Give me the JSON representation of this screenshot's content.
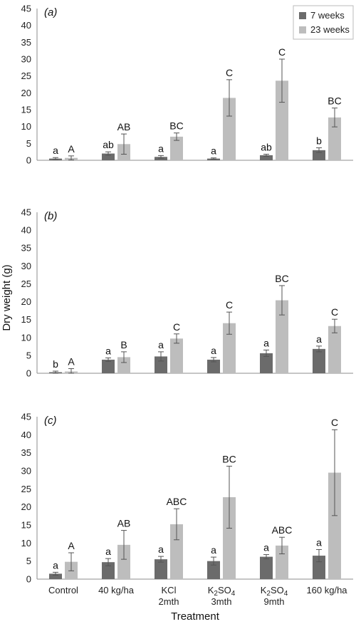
{
  "chart_data": [
    {
      "type": "bar",
      "panel_label": "(a)",
      "categories": [
        "Control",
        "40 kg/ha",
        "KCl 2mth",
        "K2SO4 3mth",
        "K2SO4 9mth",
        "160 kg/ha"
      ],
      "ylim": [
        0,
        45
      ],
      "yticks": [
        0,
        5,
        10,
        15,
        20,
        25,
        30,
        35,
        40,
        45
      ],
      "series": [
        {
          "name": "7 weeks",
          "values": [
            0.5,
            2.0,
            1.0,
            0.5,
            1.5,
            3.0
          ],
          "errors": [
            0.3,
            0.5,
            0.4,
            0.2,
            0.3,
            0.7
          ],
          "letters": [
            "a",
            "ab",
            "a",
            "a",
            "ab",
            "b"
          ]
        },
        {
          "name": "23 weeks",
          "values": [
            0.7,
            4.8,
            7.0,
            18.5,
            23.6,
            12.7
          ],
          "errors": [
            0.6,
            3.0,
            1.1,
            5.4,
            6.4,
            2.8
          ],
          "letters": [
            "A",
            "AB",
            "BC",
            "C",
            "C",
            "BC"
          ]
        }
      ],
      "legend": {
        "position": "top-right",
        "entries": [
          "7 weeks",
          "23 weeks"
        ]
      }
    },
    {
      "type": "bar",
      "panel_label": "(b)",
      "categories": [
        "Control",
        "40 kg/ha",
        "KCl 2mth",
        "K2SO4 3mth",
        "K2SO4 9mth",
        "160 kg/ha"
      ],
      "ylim": [
        0,
        45
      ],
      "yticks": [
        0,
        5,
        10,
        15,
        20,
        25,
        30,
        35,
        40,
        45
      ],
      "series": [
        {
          "name": "7 weeks",
          "values": [
            0.3,
            3.8,
            4.7,
            3.8,
            5.6,
            6.8
          ],
          "errors": [
            0.3,
            0.5,
            1.3,
            0.6,
            0.9,
            0.8
          ],
          "letters": [
            "b",
            "a",
            "a",
            "a",
            "a",
            "a"
          ]
        },
        {
          "name": "23 weeks",
          "values": [
            0.5,
            4.5,
            9.7,
            14.0,
            20.4,
            13.2
          ],
          "errors": [
            0.8,
            1.5,
            1.3,
            3.1,
            4.1,
            1.9
          ],
          "letters": [
            "A",
            "B",
            "C",
            "C",
            "BC",
            "C"
          ]
        }
      ],
      "ylabel": "Dry weight (g)"
    },
    {
      "type": "bar",
      "panel_label": "(c)",
      "categories": [
        "Control",
        "40 kg/ha",
        "KCl 2mth",
        "K2SO4 3mth",
        "K2SO4 9mth",
        "160 kg/ha"
      ],
      "ylim": [
        0,
        45
      ],
      "yticks": [
        0,
        5,
        10,
        15,
        20,
        25,
        30,
        35,
        40,
        45
      ],
      "series": [
        {
          "name": "7 weeks",
          "values": [
            1.5,
            4.7,
            5.5,
            5.0,
            6.2,
            6.5
          ],
          "errors": [
            0.4,
            1.0,
            0.8,
            1.1,
            0.6,
            1.7
          ],
          "letters": [
            "a",
            "a",
            "a",
            "a",
            "a",
            "a"
          ]
        },
        {
          "name": "23 weeks",
          "values": [
            4.8,
            9.5,
            15.2,
            22.7,
            9.3,
            29.5
          ],
          "errors": [
            2.5,
            4.0,
            4.3,
            8.6,
            2.3,
            11.9
          ],
          "letters": [
            "A",
            "AB",
            "ABC",
            "BC",
            "ABC",
            "C"
          ]
        }
      ],
      "xlabel": "Treatment"
    }
  ],
  "category_labels": [
    {
      "line1": "Control",
      "line2": ""
    },
    {
      "line1": "40 kg/ha",
      "line2": ""
    },
    {
      "line1": "KCl",
      "line2": "2mth"
    },
    {
      "line1": "K2SO4",
      "line2": "3mth"
    },
    {
      "line1": "K2SO4",
      "line2": "9mth"
    },
    {
      "line1": "160 kg/ha",
      "line2": ""
    }
  ],
  "colors": {
    "series_7_weeks": "#6b6b6b",
    "series_23_weeks": "#bdbdbd",
    "error_bar": "#555555",
    "axis": "#8c8c8c",
    "text": "#111111"
  }
}
